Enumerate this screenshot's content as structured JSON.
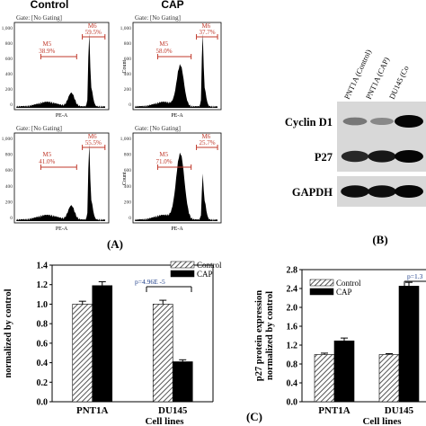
{
  "panel_a": {
    "col_labels": [
      "Control",
      "CAP"
    ],
    "gate_text": "Gate: [No Gating]",
    "x_axis_label": "PE-A",
    "y_axis_label": "Count",
    "y_ticks": [
      "1,000",
      "800",
      "600",
      "400",
      "200",
      "0"
    ],
    "panel_label": "(A)",
    "histograms": [
      {
        "id": "top-control",
        "m5_label": "M5",
        "m5_value": "38.9%",
        "m6_label": "M6",
        "m6_value": "59.5%"
      },
      {
        "id": "top-cap",
        "m5_label": "M5",
        "m5_value": "58.0%",
        "m6_label": "M6",
        "m6_value": "37.7%"
      },
      {
        "id": "bottom-control",
        "m5_label": "M5",
        "m5_value": "41.0%",
        "m6_label": "M6",
        "m6_value": "55.5%"
      },
      {
        "id": "bottom-cap",
        "m5_label": "M5",
        "m5_value": "71.0%",
        "m6_label": "M6",
        "m6_value": "25.7%"
      }
    ]
  },
  "panel_b": {
    "lane_labels": [
      "PNT1A (Control)",
      "PNT1A (CAP)",
      "DU145 (Co"
    ],
    "rows": [
      {
        "name": "Cyclin D1"
      },
      {
        "name": "P27"
      },
      {
        "name": "GAPDH"
      }
    ],
    "panel_label": "(B)"
  },
  "panel_c_label": "(C)",
  "chart_data": [
    {
      "type": "bar",
      "title": "",
      "xlabel": "Cell lines",
      "ylabel": "normalized by control",
      "categories": [
        "PNT1A",
        "DU145"
      ],
      "series": [
        {
          "name": "Control",
          "values": [
            1.0,
            1.0
          ],
          "errors": [
            0.03,
            0.04
          ],
          "color": "#808080",
          "pattern": "hatch"
        },
        {
          "name": "CAP",
          "values": [
            1.19,
            0.41
          ],
          "errors": [
            0.04,
            0.02
          ],
          "color": "#000000",
          "pattern": "solid"
        }
      ],
      "ylim": [
        0.0,
        1.4
      ],
      "yticks": [
        "0.0",
        "0.2",
        "0.4",
        "0.6",
        "0.8",
        "1.0",
        "1.2",
        "1.4"
      ],
      "annotations": [
        "p=4.96E -5"
      ],
      "legend_position": "top-right"
    },
    {
      "type": "bar",
      "title": "",
      "xlabel": "Cell lines",
      "ylabel": "p27 protein expression normalized by control",
      "ylabel_lines": [
        "p27 protein expression",
        "normalized by control"
      ],
      "categories": [
        "PNT1A",
        "DU145"
      ],
      "series": [
        {
          "name": "Control",
          "values": [
            1.0,
            1.0
          ],
          "errors": [
            0.03,
            0.02
          ],
          "color": "#808080",
          "pattern": "hatch"
        },
        {
          "name": "CAP",
          "values": [
            1.29,
            2.45
          ],
          "errors": [
            0.06,
            0.08
          ],
          "color": "#000000",
          "pattern": "solid"
        }
      ],
      "ylim": [
        0.0,
        2.8
      ],
      "yticks": [
        "0.0",
        "0.4",
        "0.8",
        "1.2",
        "1.6",
        "2.0",
        "2.4",
        "2.8"
      ],
      "annotations": [
        "p=1.3"
      ],
      "legend_position": "top-left"
    }
  ]
}
